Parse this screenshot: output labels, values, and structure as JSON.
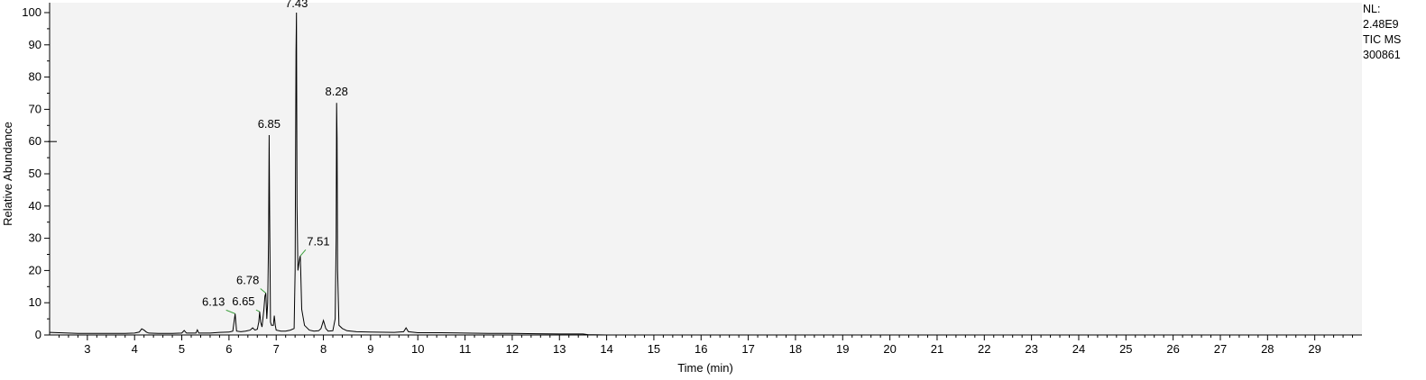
{
  "chart_data": {
    "type": "line",
    "title": "",
    "xlabel": "Time (min)",
    "ylabel": "Relative Abundance",
    "xlim": [
      2.2,
      30.0
    ],
    "ylim": [
      0,
      100
    ],
    "x_ticks": [
      3,
      4,
      5,
      6,
      7,
      8,
      9,
      10,
      11,
      12,
      13,
      14,
      15,
      16,
      17,
      18,
      19,
      20,
      21,
      22,
      23,
      24,
      25,
      26,
      27,
      28,
      29
    ],
    "y_ticks": [
      0,
      10,
      20,
      30,
      40,
      50,
      60,
      70,
      80,
      90,
      100
    ],
    "grid": false,
    "legend": "none",
    "series": [
      {
        "color": "#000000",
        "x": [
          2.2,
          2.4,
          2.6,
          2.8,
          3.0,
          3.2,
          3.4,
          3.6,
          3.8,
          4.0,
          4.1,
          4.15,
          4.2,
          4.25,
          4.3,
          4.5,
          4.8,
          5.0,
          5.05,
          5.1,
          5.3,
          5.33,
          5.36,
          5.6,
          5.8,
          6.0,
          6.08,
          6.13,
          6.16,
          6.25,
          6.35,
          6.45,
          6.5,
          6.55,
          6.6,
          6.63,
          6.65,
          6.67,
          6.7,
          6.74,
          6.76,
          6.78,
          6.8,
          6.82,
          6.84,
          6.85,
          6.86,
          6.88,
          6.9,
          6.94,
          6.96,
          6.98,
          7.0,
          7.1,
          7.2,
          7.3,
          7.38,
          7.4,
          7.42,
          7.43,
          7.44,
          7.46,
          7.48,
          7.5,
          7.51,
          7.52,
          7.54,
          7.6,
          7.7,
          7.8,
          7.9,
          7.95,
          8.0,
          8.05,
          8.1,
          8.2,
          8.25,
          8.27,
          8.28,
          8.29,
          8.3,
          8.33,
          8.4,
          8.5,
          8.7,
          9.0,
          9.5,
          9.7,
          9.75,
          9.8,
          10.0,
          10.5,
          11.0,
          11.5,
          12.0,
          12.5,
          13.0,
          13.5,
          13.6,
          14.0,
          15.0,
          16.0,
          18.0,
          20.0,
          22.0,
          24.0,
          26.0,
          28.0,
          30.0
        ],
        "y": [
          0.8,
          0.7,
          0.6,
          0.5,
          0.5,
          0.5,
          0.5,
          0.5,
          0.5,
          0.6,
          0.9,
          1.9,
          1.5,
          0.9,
          0.6,
          0.5,
          0.5,
          0.6,
          1.4,
          0.6,
          0.6,
          1.6,
          0.6,
          0.6,
          0.8,
          0.9,
          1.2,
          6.6,
          1.2,
          1.0,
          1.2,
          1.5,
          2.2,
          1.5,
          1.8,
          4.0,
          7.2,
          4.0,
          2.5,
          8.0,
          12.0,
          13.0,
          5.0,
          10.0,
          30.0,
          62.0,
          40.0,
          4.0,
          3.0,
          3.0,
          6.0,
          3.0,
          1.5,
          1.2,
          1.2,
          1.5,
          2.0,
          20.0,
          88.0,
          100.0,
          40.0,
          20.0,
          22.0,
          24.0,
          24.5,
          20.0,
          8.0,
          3.0,
          1.5,
          1.2,
          1.3,
          2.0,
          4.5,
          2.0,
          1.2,
          1.3,
          5.0,
          30.0,
          72.0,
          61.0,
          20.0,
          3.0,
          2.0,
          1.3,
          1.0,
          0.9,
          0.8,
          1.0,
          2.2,
          1.0,
          0.7,
          0.7,
          0.6,
          0.5,
          0.5,
          0.4,
          0.3,
          0.3,
          0.1,
          0.0,
          0.0,
          0.0,
          0.0,
          0.0,
          0.0,
          0.0,
          0.0,
          0.0,
          0.0
        ]
      }
    ],
    "peak_labels": [
      {
        "text": "7.43",
        "x": 7.43,
        "y": 100
      },
      {
        "text": "6.85",
        "x": 6.85,
        "y": 62
      },
      {
        "text": "8.28",
        "x": 8.28,
        "y": 72
      },
      {
        "text": "7.51",
        "x": 7.51,
        "y": 24.5
      },
      {
        "text": "6.78",
        "x": 6.78,
        "y": 13
      },
      {
        "text": "6.65",
        "x": 6.65,
        "y": 7.2
      },
      {
        "text": "6.13",
        "x": 6.13,
        "y": 6.6
      }
    ]
  },
  "info": {
    "nl_label": "NL:",
    "nl_value": "2.48E9",
    "scan_type": "TIC  MS",
    "sample_id": "300861"
  }
}
